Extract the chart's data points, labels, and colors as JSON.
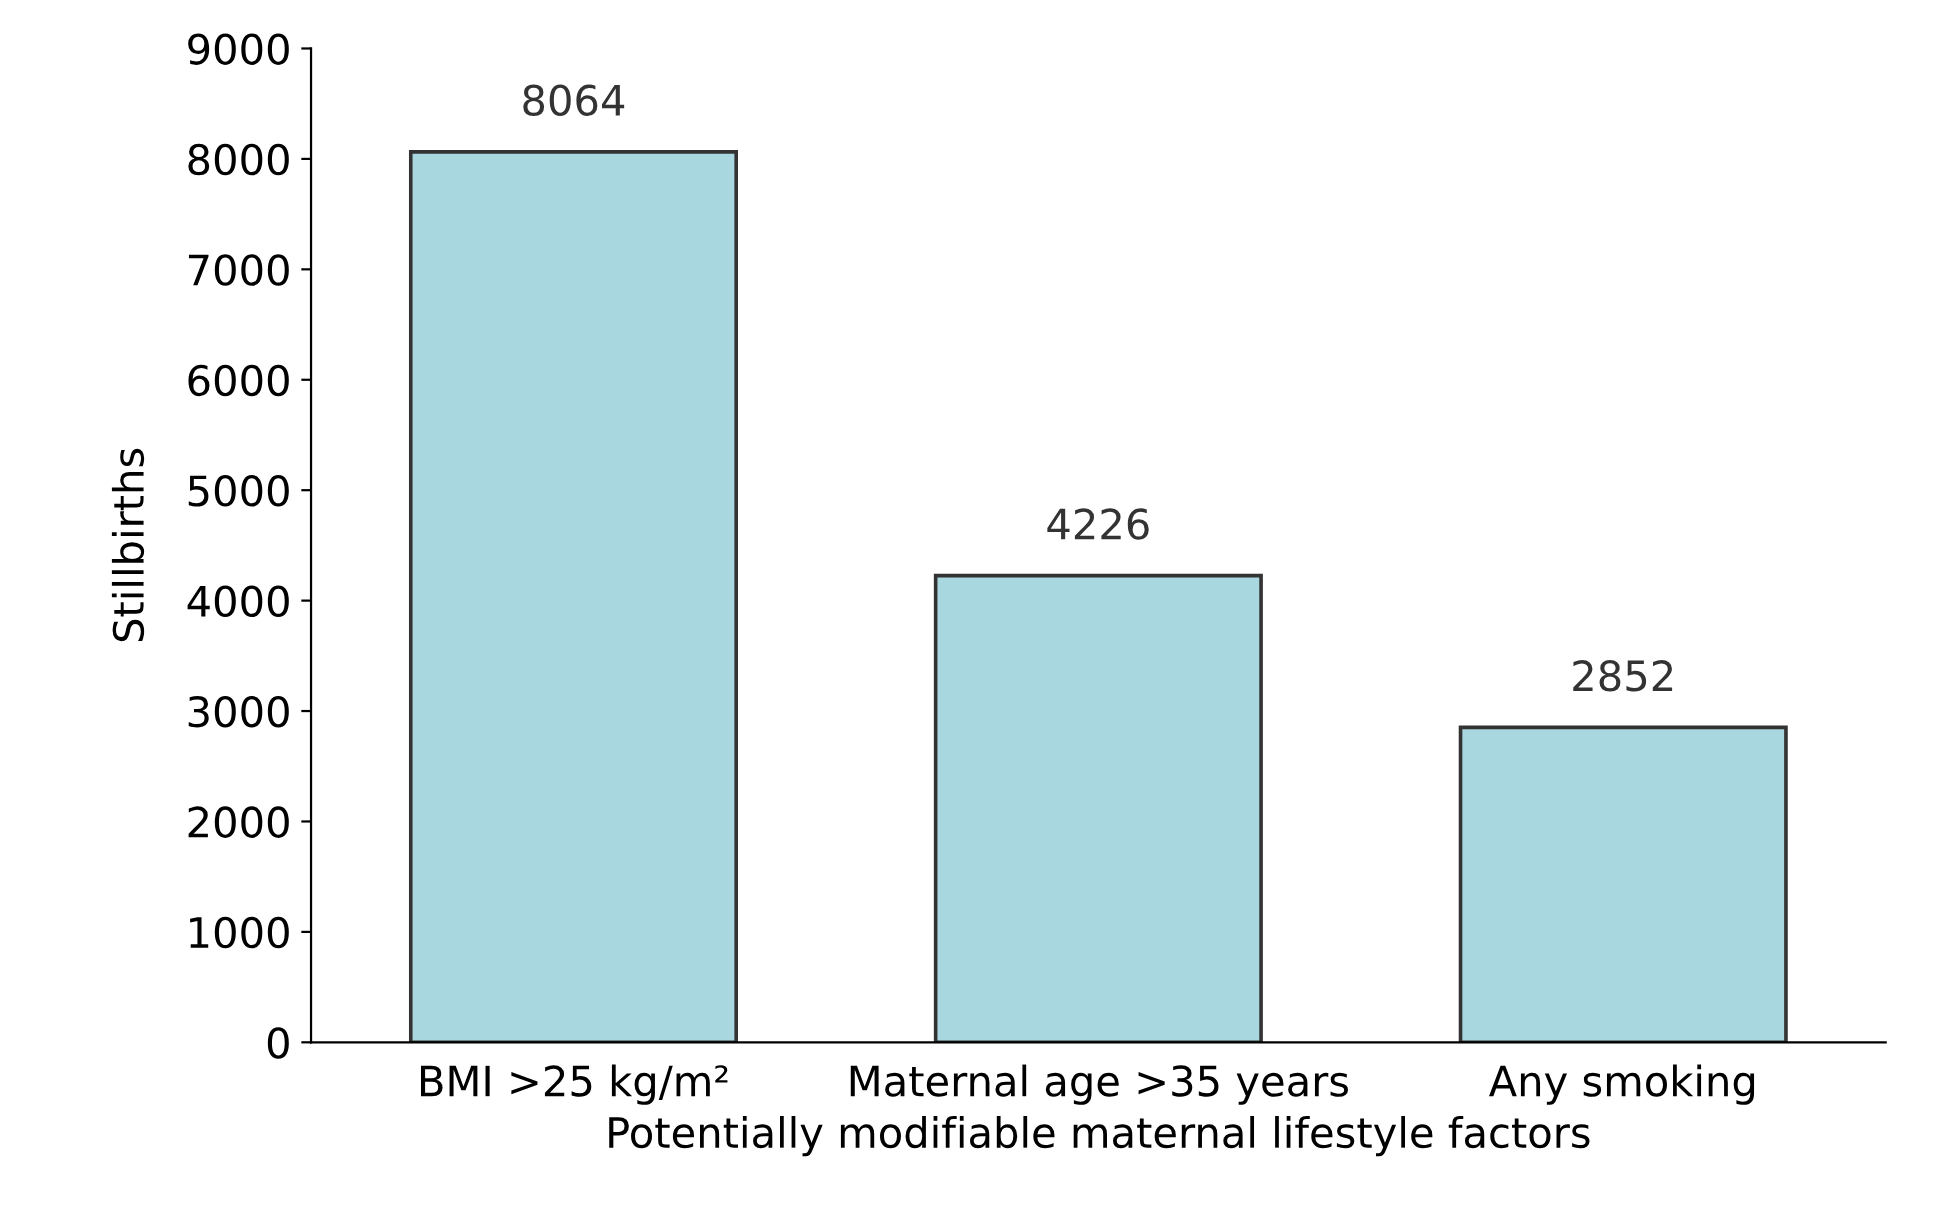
{
  "chart_data": {
    "type": "bar",
    "xlabel": "Potentially modifiable maternal lifestyle factors",
    "ylabel": "Stillbirths",
    "categories": [
      "BMI >25 kg/m²",
      "Maternal age >35 years",
      "Any smoking"
    ],
    "values": [
      8064,
      4226,
      2852
    ],
    "color": "#a9d7e0",
    "ylim": [
      0,
      9000
    ],
    "yticks": [
      0,
      1000,
      2000,
      3000,
      4000,
      5000,
      6000,
      7000,
      8000,
      9000
    ],
    "data_labels": true,
    "grid": false,
    "legend": false
  }
}
